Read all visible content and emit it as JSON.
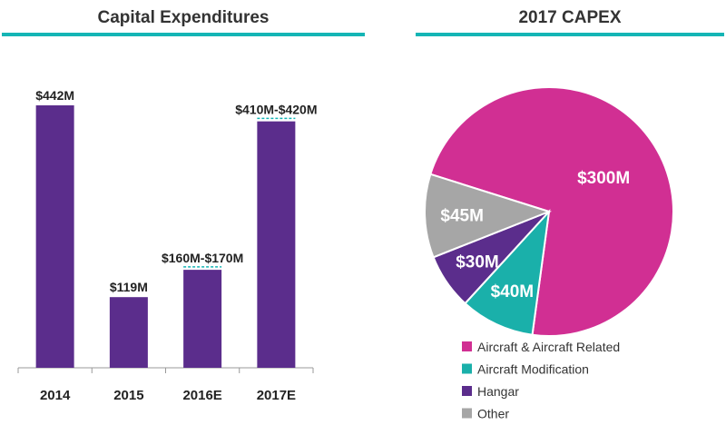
{
  "titles": {
    "left": "Capital Expenditures",
    "right": "2017 CAPEX"
  },
  "colors": {
    "accent": "#14b5b5",
    "bar": "#5b2d8c"
  },
  "chart_data": [
    {
      "type": "bar",
      "title": "Capital Expenditures",
      "categories": [
        "2014",
        "2015",
        "2016E",
        "2017E"
      ],
      "values": [
        442,
        119,
        165,
        415
      ],
      "ranges": [
        null,
        null,
        [
          160,
          170
        ],
        [
          410,
          420
        ]
      ],
      "data_labels": [
        "$442M",
        "$119M",
        "$160M-$170M",
        "$410M-$420M"
      ],
      "units": "$M",
      "ylim": [
        0,
        442
      ],
      "grid": false,
      "color": "#5b2d8c"
    },
    {
      "type": "pie",
      "title": "2017 CAPEX",
      "categories": [
        "Aircraft & Aircraft Related",
        "Aircraft Modification",
        "Hangar",
        "Other"
      ],
      "values": [
        300,
        40,
        30,
        45
      ],
      "data_labels": [
        "$300M",
        "$40M",
        "$30M",
        "$45M"
      ],
      "colors": [
        "#d12f93",
        "#1ab0aa",
        "#5b2d8c",
        "#a6a6a6"
      ],
      "legend_position": "bottom"
    }
  ]
}
